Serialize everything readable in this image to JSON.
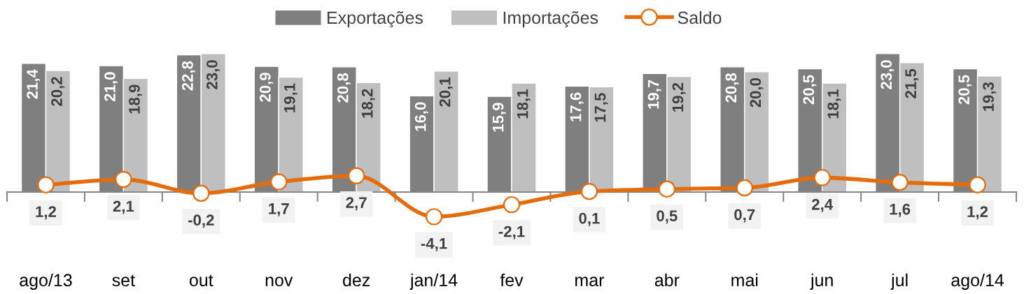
{
  "chart_data": {
    "type": "bar",
    "categories": [
      "ago/13",
      "set",
      "out",
      "nov",
      "dez",
      "jan/14",
      "fev",
      "mar",
      "abr",
      "mai",
      "jun",
      "jul",
      "ago/14"
    ],
    "series": [
      {
        "name": "Exportações",
        "color": "#7f7f7f",
        "values": [
          21.4,
          21.0,
          22.8,
          20.9,
          20.8,
          16.0,
          15.9,
          17.6,
          19.7,
          20.8,
          20.5,
          23.0,
          20.5
        ],
        "value_labels": [
          "21,4",
          "21,0",
          "22,8",
          "20,9",
          "20,8",
          "16,0",
          "15,9",
          "17,6",
          "19,7",
          "20,8",
          "20,5",
          "23,0",
          "20,5"
        ]
      },
      {
        "name": "Importações",
        "color": "#bfbfbf",
        "values": [
          20.2,
          18.9,
          23.0,
          19.1,
          18.2,
          20.1,
          18.1,
          17.5,
          19.2,
          20.0,
          18.1,
          21.5,
          19.3
        ],
        "value_labels": [
          "20,2",
          "18,9",
          "23,0",
          "19,1",
          "18,2",
          "20,1",
          "18,1",
          "17,5",
          "19,2",
          "20,0",
          "18,1",
          "21,5",
          "19,3"
        ]
      },
      {
        "name": "Saldo",
        "type": "line",
        "color": "#e46c0a",
        "marker": "circle",
        "values": [
          1.2,
          2.1,
          -0.2,
          1.7,
          2.7,
          -4.1,
          -2.1,
          0.1,
          0.5,
          0.7,
          2.4,
          1.6,
          1.2
        ],
        "value_labels": [
          "1,2",
          "2,1",
          "-0,2",
          "1,7",
          "2,7",
          "-4,1",
          "-2,1",
          "0,1",
          "0,5",
          "0,7",
          "2,4",
          "1,6",
          "1,2"
        ]
      }
    ],
    "legend": "top"
  }
}
